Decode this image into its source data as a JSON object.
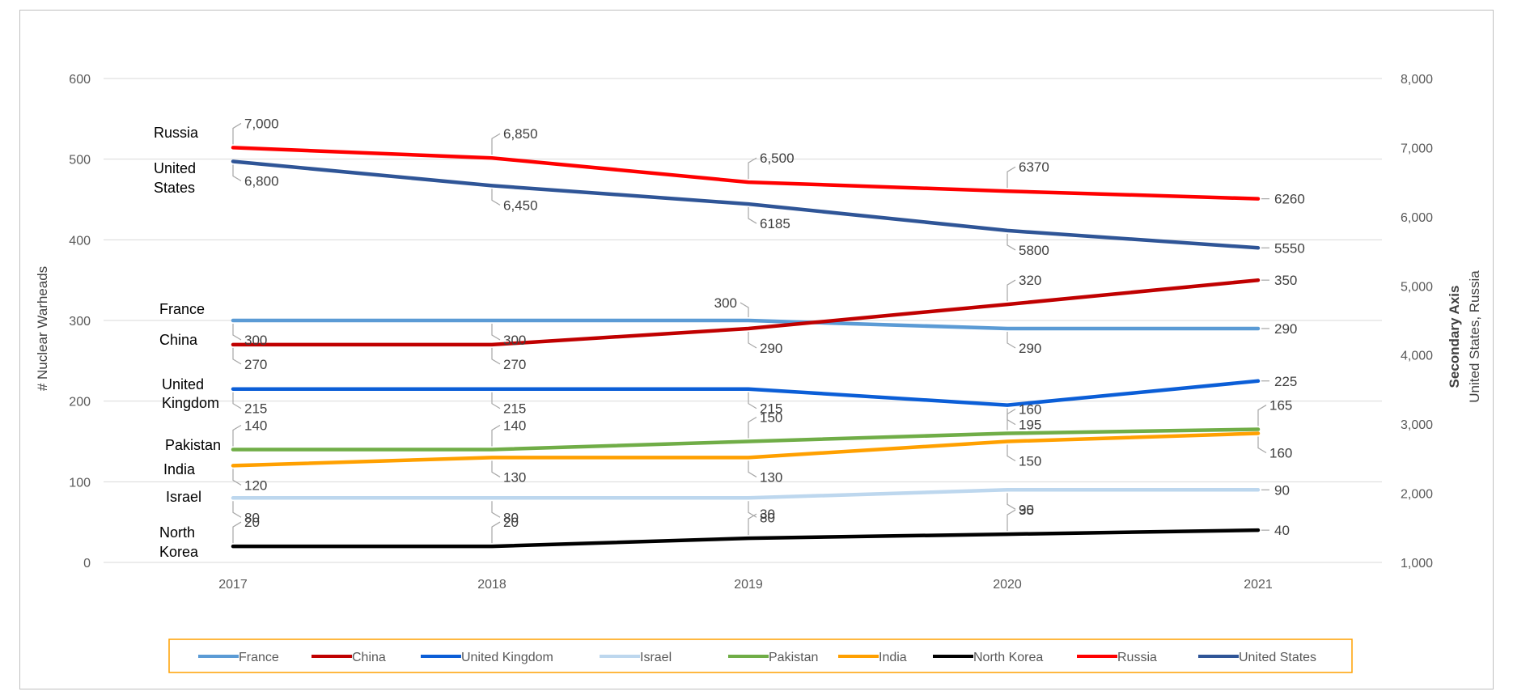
{
  "chart_data": {
    "type": "line",
    "x": [
      "2017",
      "2018",
      "2019",
      "2020",
      "2021"
    ],
    "y_left": {
      "label": "# Nuclear Warheads",
      "ylim": [
        0,
        600
      ],
      "ticks": [
        "0",
        "100",
        "200",
        "300",
        "400",
        "500",
        "600"
      ]
    },
    "y_right": {
      "label_line1": "Secondary Axis",
      "label_line2": "United States, Russia",
      "ylim": [
        1000,
        8000
      ],
      "ticks": [
        "1,000",
        "2,000",
        "3,000",
        "4,000",
        "5,000",
        "6,000",
        "7,000",
        "8,000"
      ]
    },
    "grid": true,
    "legend_position": "bottom",
    "series": [
      {
        "name": "France",
        "axis": "left",
        "color": "#5B9BD5",
        "values": [
          300,
          300,
          300,
          290,
          290
        ],
        "labels": [
          "300",
          "300",
          "300",
          "290",
          "290"
        ],
        "inline_label": [
          "France"
        ]
      },
      {
        "name": "China",
        "axis": "left",
        "color": "#C00000",
        "values": [
          270,
          270,
          290,
          320,
          350
        ],
        "labels": [
          "270",
          "270",
          "290",
          "320",
          "350"
        ],
        "inline_label": [
          "China"
        ]
      },
      {
        "name": "United Kingdom",
        "axis": "left",
        "color": "#0B5ED7",
        "values": [
          215,
          215,
          215,
          195,
          225
        ],
        "labels": [
          "215",
          "215",
          "215",
          "195",
          "225"
        ],
        "inline_label": [
          "United",
          "Kingdom"
        ]
      },
      {
        "name": "Israel",
        "axis": "left",
        "color": "#BDD7EE",
        "values": [
          80,
          80,
          80,
          90,
          90
        ],
        "labels": [
          "80",
          "80",
          "80",
          "90",
          "90"
        ],
        "inline_label": [
          "Israel"
        ]
      },
      {
        "name": "Pakistan",
        "axis": "left",
        "color": "#70AD47",
        "values": [
          140,
          140,
          150,
          160,
          165
        ],
        "labels": [
          "140",
          "140",
          "150",
          "160",
          "165"
        ],
        "inline_label": [
          "Pakistan"
        ]
      },
      {
        "name": "India",
        "axis": "left",
        "color": "#FFA000",
        "values": [
          120,
          130,
          130,
          150,
          160
        ],
        "labels": [
          "120",
          "130",
          "130",
          "150",
          "160"
        ],
        "inline_label": [
          "India"
        ]
      },
      {
        "name": "North Korea",
        "axis": "left",
        "color": "#000000",
        "values": [
          20,
          20,
          30,
          35,
          40
        ],
        "labels": [
          "20",
          "20",
          "30",
          "35",
          "40"
        ],
        "inline_label": [
          "North",
          "Korea"
        ]
      },
      {
        "name": "Russia",
        "axis": "right",
        "color": "#FF0000",
        "values": [
          7000,
          6850,
          6500,
          6370,
          6260
        ],
        "labels": [
          "7,000",
          "6,850",
          "6,500",
          "6370",
          "6260"
        ],
        "inline_label": [
          "Russia"
        ]
      },
      {
        "name": "United States",
        "axis": "right",
        "color": "#2F5597",
        "values": [
          6800,
          6450,
          6185,
          5800,
          5550
        ],
        "labels": [
          "6,800",
          "6,450",
          "6185",
          "5800",
          "5550"
        ],
        "inline_label": [
          "United",
          "States"
        ]
      }
    ],
    "legend_order": [
      "France",
      "China",
      "United Kingdom",
      "Israel",
      "Pakistan",
      "India",
      "North Korea",
      "Russia",
      "United States"
    ],
    "legend_border_color": "#FFA000"
  }
}
